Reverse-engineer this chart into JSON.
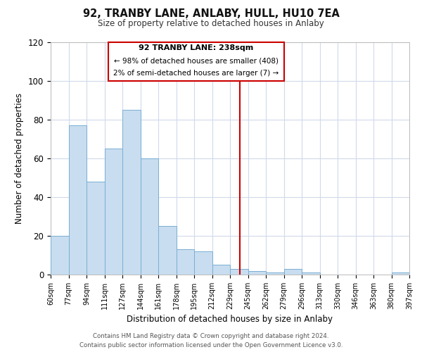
{
  "title": "92, TRANBY LANE, ANLABY, HULL, HU10 7EA",
  "subtitle": "Size of property relative to detached houses in Anlaby",
  "xlabel": "Distribution of detached houses by size in Anlaby",
  "ylabel": "Number of detached properties",
  "bins": [
    "60sqm",
    "77sqm",
    "94sqm",
    "111sqm",
    "127sqm",
    "144sqm",
    "161sqm",
    "178sqm",
    "195sqm",
    "212sqm",
    "229sqm",
    "245sqm",
    "262sqm",
    "279sqm",
    "296sqm",
    "313sqm",
    "330sqm",
    "346sqm",
    "363sqm",
    "380sqm",
    "397sqm"
  ],
  "values": [
    20,
    77,
    48,
    65,
    85,
    60,
    25,
    13,
    12,
    5,
    3,
    2,
    1,
    3,
    1,
    0,
    0,
    0,
    0,
    1,
    0
  ],
  "bar_color": "#c8ddef",
  "bar_edge_color": "#7aafd4",
  "vline_color": "#cc0000",
  "annotation_title": "92 TRANBY LANE: 238sqm",
  "annotation_line1": "← 98% of detached houses are smaller (408)",
  "annotation_line2": "2% of semi-detached houses are larger (7) →",
  "annotation_box_color": "#ffffff",
  "annotation_box_edge": "#cc0000",
  "ylim": [
    0,
    120
  ],
  "yticks": [
    0,
    20,
    40,
    60,
    80,
    100,
    120
  ],
  "footer_line1": "Contains HM Land Registry data © Crown copyright and database right 2024.",
  "footer_line2": "Contains public sector information licensed under the Open Government Licence v3.0.",
  "background_color": "#ffffff",
  "grid_color": "#d0daea"
}
